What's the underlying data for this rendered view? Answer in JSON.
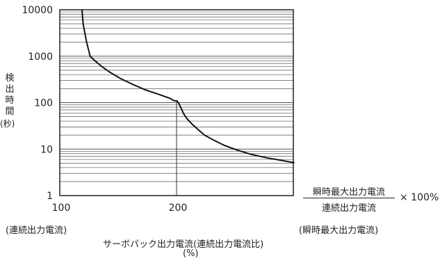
{
  "chart_data": {
    "type": "line",
    "title": "",
    "ylabel_chars": [
      "検",
      "出",
      "時",
      "間"
    ],
    "ylabel_unit": "(秒)",
    "xlabel": "サーボパック出力電流(連続出力電流比)",
    "xlabel_unit": "(%)",
    "y_scale": "log",
    "ylim": [
      1,
      10000
    ],
    "xlim": [
      100,
      300
    ],
    "y_ticks": [
      "10000",
      "1000",
      "100",
      "10",
      "1"
    ],
    "y_tick_values": [
      10000,
      1000,
      100,
      10,
      1
    ],
    "x_ticks": [
      "100",
      "200"
    ],
    "x_tick_values": [
      100,
      200
    ],
    "grid": "horizontal-minor",
    "series": [
      {
        "x": [
          119,
          120,
          123,
          126,
          130,
          136,
          143,
          152,
          162,
          173,
          185,
          194,
          198,
          200,
          201,
          202,
          204,
          206,
          209,
          213,
          218,
          224,
          232,
          241,
          252,
          264,
          277,
          290,
          301
        ],
        "y": [
          10000,
          5000,
          2000,
          1000,
          800,
          600,
          450,
          330,
          250,
          190,
          150,
          125,
          110,
          110,
          105,
          95,
          75,
          58,
          45,
          35,
          27,
          20,
          15.5,
          12,
          9.5,
          7.7,
          6.5,
          5.7,
          5.1
        ]
      }
    ],
    "reference_line_x": 200,
    "formula": {
      "numerator": "瞬時最大出力電流",
      "denominator": "連続出力電流",
      "multiplier": "× 100%"
    },
    "notes": {
      "left": "(連続出力電流)",
      "right": "(瞬時最大出力電流)"
    }
  }
}
